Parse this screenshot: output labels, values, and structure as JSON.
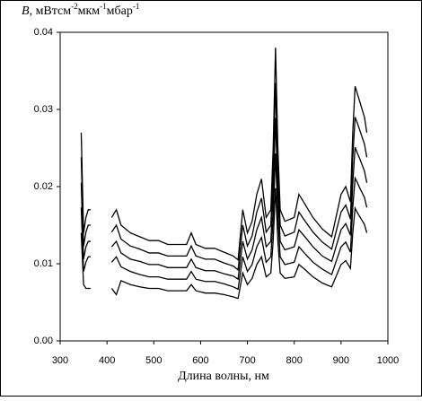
{
  "chart_data": {
    "type": "line",
    "ylabel_parts": [
      "B",
      ",  мВтсм",
      "-2",
      "мкм",
      "-1",
      "мбар",
      "-1"
    ],
    "xlabel": "Длина волны, нм",
    "color": "#000000",
    "xlim": [
      300,
      1000
    ],
    "xticks": [
      300,
      400,
      500,
      600,
      700,
      800,
      900,
      1000
    ],
    "ylim": [
      0,
      0.04
    ],
    "yticks": [
      {
        "value": 0,
        "label": "0.00"
      },
      {
        "value": 0.01,
        "label": "0.01"
      },
      {
        "value": 0.02,
        "label": "0.02"
      },
      {
        "value": 0.03,
        "label": "0.03"
      },
      {
        "value": 0.04,
        "label": "0.04"
      }
    ],
    "x": [
      345,
      350,
      355,
      360,
      365,
      390,
      410,
      420,
      430,
      450,
      470,
      490,
      510,
      530,
      550,
      570,
      580,
      590,
      610,
      630,
      650,
      670,
      680,
      690,
      700,
      710,
      720,
      730,
      740,
      750,
      755,
      760,
      765,
      770,
      780,
      800,
      810,
      820,
      840,
      860,
      880,
      900,
      910,
      920,
      925,
      930,
      935,
      940,
      950,
      955
    ],
    "series": [
      {
        "values": [
          0.027,
          0.014,
          0.016,
          0.017,
          0.017,
          null,
          0.016,
          0.017,
          0.015,
          0.014,
          0.0135,
          0.013,
          0.013,
          0.0125,
          0.0125,
          0.0125,
          0.014,
          0.0125,
          0.012,
          0.012,
          0.0115,
          0.011,
          0.0105,
          0.017,
          0.014,
          0.0155,
          0.019,
          0.021,
          0.016,
          0.017,
          0.025,
          0.038,
          0.025,
          0.017,
          0.0155,
          0.016,
          0.019,
          0.018,
          0.016,
          0.0145,
          0.0135,
          0.019,
          0.02,
          0.018,
          0.027,
          0.033,
          0.032,
          0.031,
          0.029,
          0.027
        ]
      },
      {
        "values": [
          0.0238,
          0.0123,
          0.0141,
          0.015,
          0.015,
          null,
          0.0141,
          0.015,
          0.0132,
          0.0123,
          0.0119,
          0.0114,
          0.0114,
          0.011,
          0.011,
          0.011,
          0.0123,
          0.011,
          0.0106,
          0.0106,
          0.0101,
          0.0097,
          0.0092,
          0.015,
          0.0123,
          0.0136,
          0.0167,
          0.0185,
          0.0141,
          0.015,
          0.022,
          0.0334,
          0.022,
          0.015,
          0.0136,
          0.0141,
          0.0167,
          0.0158,
          0.0141,
          0.0128,
          0.0119,
          0.0167,
          0.0176,
          0.0158,
          0.0238,
          0.029,
          0.0282,
          0.0273,
          0.0255,
          0.0238
        ]
      },
      {
        "values": [
          0.0205,
          0.0106,
          0.0122,
          0.0129,
          0.0129,
          null,
          0.0122,
          0.0129,
          0.0114,
          0.0106,
          0.0103,
          0.0099,
          0.0099,
          0.0095,
          0.0095,
          0.0095,
          0.0106,
          0.0095,
          0.0091,
          0.0091,
          0.0087,
          0.0084,
          0.008,
          0.0129,
          0.0106,
          0.0118,
          0.0144,
          0.016,
          0.0122,
          0.0129,
          0.019,
          0.0289,
          0.019,
          0.0129,
          0.0118,
          0.0122,
          0.0144,
          0.0137,
          0.0122,
          0.011,
          0.0103,
          0.0144,
          0.0152,
          0.0137,
          0.0205,
          0.0251,
          0.0243,
          0.0236,
          0.022,
          0.0205
        ]
      },
      {
        "values": [
          0.0173,
          0.009,
          0.0102,
          0.0109,
          0.0109,
          null,
          0.0102,
          0.0109,
          0.0096,
          0.009,
          0.0086,
          0.0083,
          0.0083,
          0.008,
          0.008,
          0.008,
          0.009,
          0.008,
          0.0077,
          0.0077,
          0.0074,
          0.007,
          0.0067,
          0.0109,
          0.009,
          0.0099,
          0.0122,
          0.0134,
          0.0102,
          0.0109,
          0.016,
          0.0243,
          0.016,
          0.0109,
          0.0099,
          0.0102,
          0.0122,
          0.0115,
          0.0102,
          0.0093,
          0.0086,
          0.0122,
          0.0128,
          0.0115,
          0.0173,
          0.0211,
          0.0205,
          0.0198,
          0.0186,
          0.0173
        ]
      },
      {
        "values": [
          0.014,
          0.0073,
          0.0068,
          0.0068,
          0.0068,
          null,
          0.0068,
          0.006,
          0.0078,
          0.0073,
          0.007,
          0.0068,
          0.0068,
          0.0065,
          0.0065,
          0.0065,
          0.0073,
          0.0065,
          0.0062,
          0.0062,
          0.006,
          0.0057,
          0.0055,
          0.0088,
          0.0073,
          0.0081,
          0.0099,
          0.0109,
          0.0083,
          0.0088,
          0.013,
          0.0198,
          0.013,
          0.0088,
          0.0081,
          0.0083,
          0.0099,
          0.0094,
          0.0083,
          0.0075,
          0.007,
          0.0099,
          0.0104,
          0.0094,
          0.014,
          0.0172,
          0.0166,
          0.0161,
          0.0151,
          0.014
        ]
      }
    ]
  }
}
